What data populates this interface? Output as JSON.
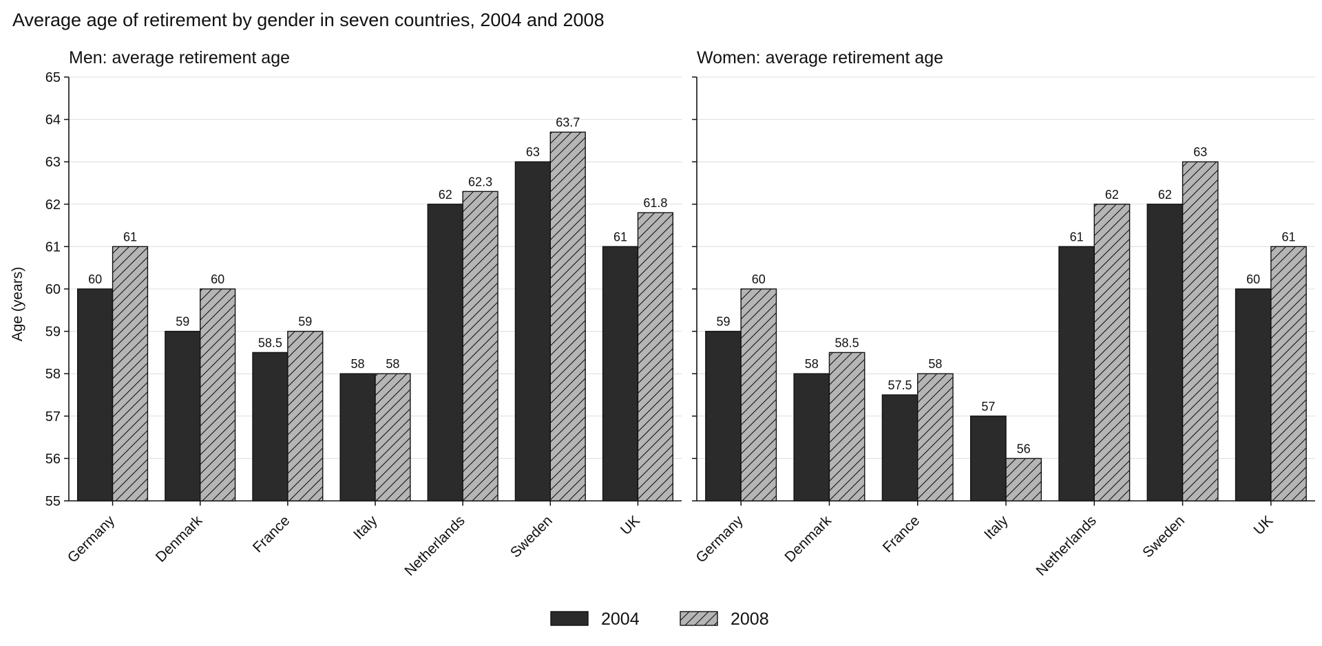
{
  "figure": {
    "title": "Average age of retirement by gender in seven countries, 2004 and 2008",
    "ylabel": "Age (years)"
  },
  "legend": [
    {
      "name": "2004",
      "color": "#2b2b2b",
      "pattern": "solid"
    },
    {
      "name": "2008",
      "color": "#b5b5b5",
      "pattern": "diagonal-hatch"
    }
  ],
  "chart_data": [
    {
      "type": "bar",
      "title": "Men: average retirement age",
      "ylabel": "Age (years)",
      "ylim": [
        55,
        65
      ],
      "yticks": [
        55,
        56,
        57,
        58,
        59,
        60,
        61,
        62,
        63,
        64,
        65
      ],
      "grid": true,
      "categories": [
        "Germany",
        "Denmark",
        "France",
        "Italy",
        "Netherlands",
        "Sweden",
        "UK"
      ],
      "series": [
        {
          "name": "2004",
          "values": [
            60,
            59,
            58.5,
            58,
            62,
            63,
            61
          ],
          "labels": [
            "60",
            "59",
            "58.5",
            "58",
            "62",
            "63",
            "61"
          ]
        },
        {
          "name": "2008",
          "values": [
            61,
            60,
            59,
            58,
            62.3,
            63.7,
            61.8
          ],
          "labels": [
            "61",
            "60",
            "59",
            "58",
            "62.3",
            "63.7",
            "61.8"
          ]
        }
      ]
    },
    {
      "type": "bar",
      "title": "Women: average retirement age",
      "ylim": [
        55,
        65
      ],
      "yticks": [
        55,
        56,
        57,
        58,
        59,
        60,
        61,
        62,
        63,
        64,
        65
      ],
      "grid": true,
      "categories": [
        "Germany",
        "Denmark",
        "France",
        "Italy",
        "Netherlands",
        "Sweden",
        "UK"
      ],
      "series": [
        {
          "name": "2004",
          "values": [
            59,
            58,
            57.5,
            57,
            61,
            62,
            60
          ],
          "labels": [
            "59",
            "58",
            "57.5",
            "57",
            "61",
            "62",
            "60"
          ]
        },
        {
          "name": "2008",
          "values": [
            60,
            58.5,
            58,
            56,
            62,
            63,
            61
          ],
          "labels": [
            "60",
            "58.5",
            "58",
            "56",
            "62",
            "63",
            "61"
          ]
        }
      ]
    }
  ]
}
